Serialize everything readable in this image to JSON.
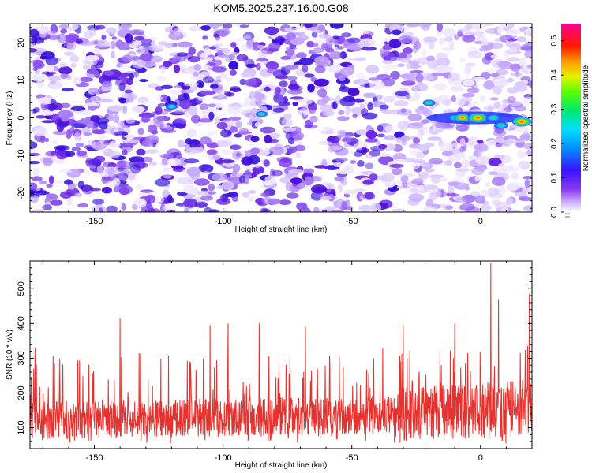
{
  "title": "KOM5.2025.237.16.00.G08",
  "chart_data": [
    {
      "type": "heatmap",
      "xlabel": "Height of straight line (km)",
      "ylabel": "Frequency (Hz)",
      "xlim": [
        -175,
        20
      ],
      "ylim": [
        -25,
        25
      ],
      "xticks": [
        -150,
        -100,
        -50,
        0
      ],
      "yticks": [
        -20,
        -10,
        0,
        10,
        20
      ],
      "colorbar": {
        "label": "Normalized spectral amplitude",
        "range": [
          0.0,
          0.55
        ],
        "ticks": [
          0.0,
          0.1,
          0.2,
          0.3,
          0.4,
          0.5
        ],
        "colormap": "rainbow (white → purple → blue → cyan → green → yellow → red → magenta)"
      },
      "background_amplitude": [
        0.02,
        0.1
      ],
      "hotspots": [
        {
          "x": -120,
          "y": 3,
          "amplitude": 0.22
        },
        {
          "x": -85,
          "y": 1,
          "amplitude": 0.22
        },
        {
          "x": -20,
          "y": 4,
          "amplitude": 0.25
        },
        {
          "x": -10,
          "y": 0,
          "amplitude": 0.3
        },
        {
          "x": -7,
          "y": 0,
          "amplitude": 0.42
        },
        {
          "x": -1,
          "y": 0,
          "amplitude": 0.55
        },
        {
          "x": 5,
          "y": 0,
          "amplitude": 0.35
        },
        {
          "x": 8,
          "y": -2,
          "amplitude": 0.3
        },
        {
          "x": 16,
          "y": -1,
          "amplitude": 0.52
        }
      ]
    },
    {
      "type": "line",
      "xlabel": "Height of straight line (km)",
      "ylabel": "SNR (10 * v/v)",
      "xlim": [
        -175,
        20
      ],
      "ylim": [
        40,
        580
      ],
      "xticks": [
        -150,
        -100,
        -50,
        0
      ],
      "yticks": [
        100,
        200,
        300,
        400,
        500
      ],
      "line_color": "#e8302c",
      "baseline": [
        {
          "x": -175,
          "y": 120
        },
        {
          "x": -100,
          "y": 130
        },
        {
          "x": -50,
          "y": 135
        },
        {
          "x": -20,
          "y": 145
        },
        {
          "x": 0,
          "y": 150
        },
        {
          "x": 20,
          "y": 160
        }
      ],
      "peaks": [
        {
          "x": -173,
          "y": 330
        },
        {
          "x": -140,
          "y": 415
        },
        {
          "x": -105,
          "y": 395
        },
        {
          "x": -98,
          "y": 400
        },
        {
          "x": -86,
          "y": 400
        },
        {
          "x": -68,
          "y": 390
        },
        {
          "x": -30,
          "y": 395
        },
        {
          "x": -10,
          "y": 400
        },
        {
          "x": 4,
          "y": 575
        },
        {
          "x": 7,
          "y": 470
        },
        {
          "x": 19,
          "y": 485
        }
      ]
    }
  ]
}
